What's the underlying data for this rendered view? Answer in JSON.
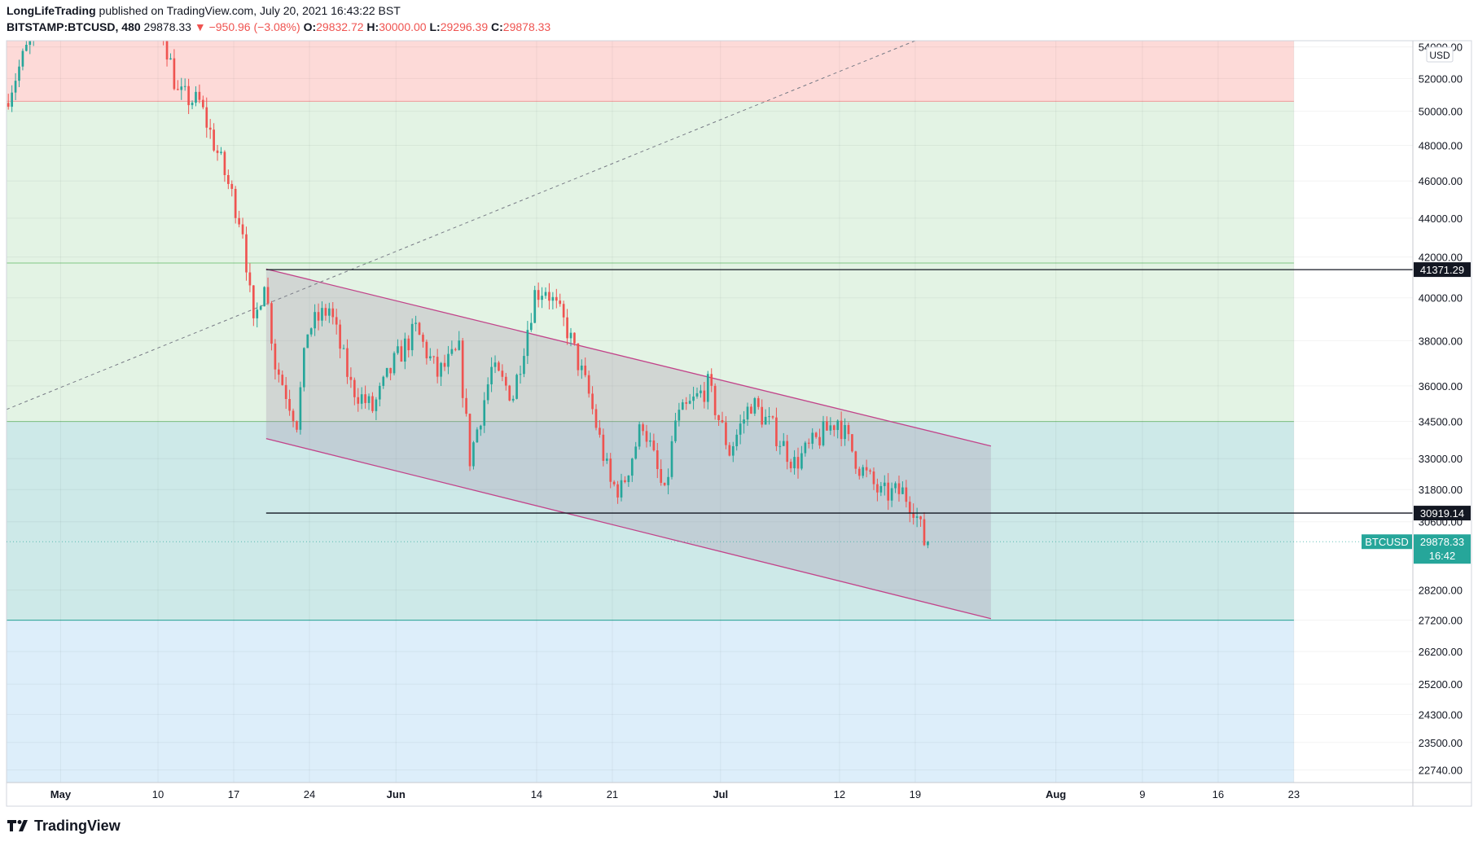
{
  "header": {
    "author": "LongLifeTrading",
    "published": "published on TradingView.com, July 20, 2021 16:43:22 BST",
    "symbol": "BITSTAMP:BTCUSD, 480",
    "last": "29878.33",
    "change": "▼ −950.96 (−3.08%)",
    "open_label": "O:",
    "open": "29832.72",
    "high_label": "H:",
    "high": "30000.00",
    "low_label": "L:",
    "low": "29296.39",
    "close_label": "C:",
    "close": "29878.33"
  },
  "brand": {
    "name": "TradingView",
    "icon": "tradingview-logo-icon"
  },
  "colors": {
    "up": "#26a69a",
    "down": "#ef5350",
    "zone_red": "#fddad8",
    "zone_green": "#e3f3e4",
    "zone_teal": "#cde9e8",
    "zone_blue": "#ddeefa",
    "channel_fill": "rgba(160,140,170,0.28)",
    "channel_line": "#c2448a",
    "hline": "#131722",
    "axis_text": "#131722"
  },
  "chart_data": {
    "type": "candlestick",
    "symbol": "BITSTAMP:BTCUSD",
    "timeframe": "480",
    "currency_label": "USD",
    "x_tick_labels": [
      "May",
      "10",
      "17",
      "24",
      "Jun",
      "14",
      "21",
      "Jul",
      "12",
      "19",
      "Aug",
      "9",
      "16",
      "23"
    ],
    "x_tick_dates": [
      "2021-05-01",
      "2021-05-10",
      "2021-05-17",
      "2021-05-24",
      "2021-06-01",
      "2021-06-14",
      "2021-06-21",
      "2021-07-01",
      "2021-07-12",
      "2021-07-19",
      "2021-08-01",
      "2021-08-09",
      "2021-08-16",
      "2021-08-23"
    ],
    "x_range": [
      "2021-04-26",
      "2021-09-03"
    ],
    "y_scale": "log",
    "y_range": [
      22400,
      54400
    ],
    "y_tick_labels": [
      "54000.00",
      "52000.00",
      "50000.00",
      "48000.00",
      "46000.00",
      "44000.00",
      "42000.00",
      "40000.00",
      "38000.00",
      "36000.00",
      "34500.00",
      "33000.00",
      "31800.00",
      "30600.00",
      "28200.00",
      "27200.00",
      "26200.00",
      "25200.00",
      "24300.00",
      "23500.00",
      "22740.00"
    ],
    "y_ticks": [
      54000,
      52000,
      50000,
      48000,
      46000,
      44000,
      42000,
      40000,
      38000,
      36000,
      34500,
      33000,
      31800,
      30600,
      28200,
      27200,
      26200,
      25200,
      24300,
      23500,
      22740
    ],
    "zones": [
      {
        "from": 50600,
        "to": 54400,
        "color": "zone_red"
      },
      {
        "from": 34500,
        "to": 41700,
        "color": "zone_green"
      },
      {
        "from": 41700,
        "to": 50600,
        "color": "zone_green"
      },
      {
        "from": 27200,
        "to": 34500,
        "color": "zone_teal"
      },
      {
        "from": 22400,
        "to": 27200,
        "color": "zone_blue"
      }
    ],
    "zone_end_date": "2021-08-23",
    "horizontal_lines": [
      {
        "price": 41371.29,
        "label": "41371.29",
        "from": "2021-05-20"
      },
      {
        "price": 30919.14,
        "label": "30919.14",
        "from": "2021-05-20"
      }
    ],
    "last_price_tag": {
      "label": "BTCUSD",
      "price": 29878.33,
      "price_label": "29878.33",
      "countdown": "16:42"
    },
    "channel": {
      "upper": [
        {
          "date": "2021-05-20",
          "price": 41400
        },
        {
          "date": "2021-07-26",
          "price": 33500
        }
      ],
      "lower": [
        {
          "date": "2021-05-20",
          "price": 33800
        },
        {
          "date": "2021-07-26",
          "price": 27250
        }
      ]
    },
    "trendline_dashed": [
      {
        "date": "2021-04-26",
        "price": 35000
      },
      {
        "date": "2021-07-19",
        "price": 54400
      }
    ],
    "candle_anchors": [
      {
        "date": "2021-04-26",
        "price": 50500
      },
      {
        "date": "2021-04-28",
        "price": 53800
      },
      {
        "date": "2021-05-01",
        "price": 56500
      },
      {
        "date": "2021-05-04",
        "price": 55500
      },
      {
        "date": "2021-05-07",
        "price": 56700
      },
      {
        "date": "2021-05-10",
        "price": 57000
      },
      {
        "date": "2021-05-12",
        "price": 51000
      },
      {
        "date": "2021-05-14",
        "price": 50500
      },
      {
        "date": "2021-05-16",
        "price": 47000
      },
      {
        "date": "2021-05-18",
        "price": 43500
      },
      {
        "date": "2021-05-19",
        "price": 38500
      },
      {
        "date": "2021-05-20",
        "price": 41000
      },
      {
        "date": "2021-05-21",
        "price": 37000
      },
      {
        "date": "2021-05-23",
        "price": 34500
      },
      {
        "date": "2021-05-24",
        "price": 38500
      },
      {
        "date": "2021-05-26",
        "price": 39500
      },
      {
        "date": "2021-05-28",
        "price": 36000
      },
      {
        "date": "2021-05-30",
        "price": 35000
      },
      {
        "date": "2021-06-01",
        "price": 37000
      },
      {
        "date": "2021-06-03",
        "price": 38500
      },
      {
        "date": "2021-06-05",
        "price": 36500
      },
      {
        "date": "2021-06-07",
        "price": 37500
      },
      {
        "date": "2021-06-08",
        "price": 33000
      },
      {
        "date": "2021-06-10",
        "price": 36700
      },
      {
        "date": "2021-06-12",
        "price": 35600
      },
      {
        "date": "2021-06-14",
        "price": 40200
      },
      {
        "date": "2021-06-15",
        "price": 40500
      },
      {
        "date": "2021-06-17",
        "price": 38500
      },
      {
        "date": "2021-06-19",
        "price": 35600
      },
      {
        "date": "2021-06-21",
        "price": 32000
      },
      {
        "date": "2021-06-22",
        "price": 31800
      },
      {
        "date": "2021-06-24",
        "price": 34500
      },
      {
        "date": "2021-06-26",
        "price": 31500
      },
      {
        "date": "2021-06-27",
        "price": 34500
      },
      {
        "date": "2021-06-30",
        "price": 36000
      },
      {
        "date": "2021-07-02",
        "price": 33300
      },
      {
        "date": "2021-07-04",
        "price": 35300
      },
      {
        "date": "2021-07-06",
        "price": 34200
      },
      {
        "date": "2021-07-08",
        "price": 32800
      },
      {
        "date": "2021-07-10",
        "price": 33700
      },
      {
        "date": "2021-07-12",
        "price": 34600
      },
      {
        "date": "2021-07-14",
        "price": 32700
      },
      {
        "date": "2021-07-16",
        "price": 31600
      },
      {
        "date": "2021-07-18",
        "price": 31700
      },
      {
        "date": "2021-07-19",
        "price": 31200
      },
      {
        "date": "2021-07-20",
        "price": 29878.33
      }
    ]
  }
}
